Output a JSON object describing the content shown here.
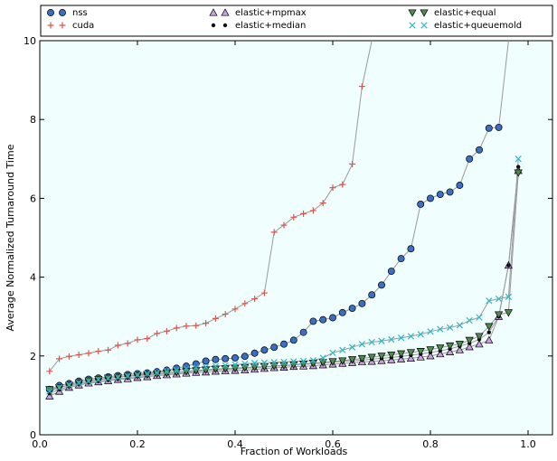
{
  "chart_data": {
    "type": "line",
    "xlabel": "Fraction of Workloads",
    "ylabel": "Average Normalized Turnaround Time",
    "xlim": [
      0.0,
      1.05
    ],
    "ylim": [
      0,
      10
    ],
    "xticks": [
      0.0,
      0.2,
      0.4,
      0.6,
      0.8,
      1.0
    ],
    "xtick_labels": [
      "0.0",
      "0.2",
      "0.4",
      "0.6",
      "0.8",
      "1.0"
    ],
    "yticks": [
      0,
      2,
      4,
      6,
      8,
      10
    ],
    "ytick_labels": [
      "0",
      "2",
      "4",
      "6",
      "8",
      "10"
    ],
    "grid": false,
    "legend_position": "top",
    "plot_background": "#f0fefe",
    "line_color": "#999999",
    "series": [
      {
        "name": "nss",
        "marker": "circle",
        "color": "#3a6fc4",
        "x": [
          0.02,
          0.04,
          0.06,
          0.08,
          0.1,
          0.12,
          0.14,
          0.16,
          0.18,
          0.2,
          0.22,
          0.24,
          0.26,
          0.28,
          0.3,
          0.32,
          0.34,
          0.36,
          0.38,
          0.4,
          0.42,
          0.44,
          0.46,
          0.48,
          0.5,
          0.52,
          0.54,
          0.56,
          0.58,
          0.6,
          0.62,
          0.64,
          0.66,
          0.68,
          0.7,
          0.72,
          0.74,
          0.76,
          0.78,
          0.8,
          0.82,
          0.84,
          0.86,
          0.88,
          0.9,
          0.92,
          0.94,
          0.96
        ],
        "y": [
          1.15,
          1.25,
          1.3,
          1.36,
          1.41,
          1.44,
          1.47,
          1.5,
          1.53,
          1.55,
          1.57,
          1.6,
          1.64,
          1.69,
          1.74,
          1.8,
          1.87,
          1.91,
          1.93,
          1.95,
          1.99,
          2.07,
          2.15,
          2.22,
          2.3,
          2.4,
          2.6,
          2.88,
          2.92,
          2.97,
          3.1,
          3.21,
          3.33,
          3.55,
          3.8,
          4.15,
          4.47,
          4.72,
          5.85,
          6.0,
          6.1,
          6.16,
          6.33,
          7.0,
          7.23,
          7.78,
          7.8,
          10.0
        ]
      },
      {
        "name": "cuda",
        "marker": "plus",
        "color": "#e0554f",
        "x": [
          0.02,
          0.04,
          0.06,
          0.08,
          0.1,
          0.12,
          0.14,
          0.16,
          0.18,
          0.2,
          0.22,
          0.24,
          0.26,
          0.28,
          0.3,
          0.32,
          0.34,
          0.36,
          0.38,
          0.4,
          0.42,
          0.44,
          0.46,
          0.48,
          0.5,
          0.52,
          0.54,
          0.56,
          0.58,
          0.6,
          0.62,
          0.64,
          0.66,
          0.68
        ],
        "y": [
          1.61,
          1.93,
          1.99,
          2.03,
          2.07,
          2.12,
          2.15,
          2.27,
          2.32,
          2.41,
          2.44,
          2.57,
          2.63,
          2.71,
          2.76,
          2.77,
          2.83,
          2.95,
          3.06,
          3.19,
          3.33,
          3.45,
          3.6,
          5.14,
          5.32,
          5.52,
          5.61,
          5.69,
          5.88,
          6.27,
          6.35,
          6.87,
          8.84,
          10.0
        ]
      },
      {
        "name": "elastic+mpmax",
        "marker": "triangle-up",
        "color": "#c9a0e0",
        "x": [
          0.02,
          0.04,
          0.06,
          0.08,
          0.1,
          0.12,
          0.14,
          0.16,
          0.18,
          0.2,
          0.22,
          0.24,
          0.26,
          0.28,
          0.3,
          0.32,
          0.34,
          0.36,
          0.38,
          0.4,
          0.42,
          0.44,
          0.46,
          0.48,
          0.5,
          0.52,
          0.54,
          0.56,
          0.58,
          0.6,
          0.62,
          0.64,
          0.66,
          0.68,
          0.7,
          0.72,
          0.74,
          0.76,
          0.78,
          0.8,
          0.82,
          0.84,
          0.86,
          0.88,
          0.9,
          0.92,
          0.94,
          0.96,
          0.98
        ],
        "y": [
          0.98,
          1.1,
          1.2,
          1.26,
          1.31,
          1.34,
          1.37,
          1.4,
          1.42,
          1.45,
          1.47,
          1.5,
          1.52,
          1.54,
          1.56,
          1.58,
          1.59,
          1.61,
          1.62,
          1.63,
          1.64,
          1.66,
          1.68,
          1.7,
          1.71,
          1.73,
          1.74,
          1.75,
          1.77,
          1.79,
          1.81,
          1.83,
          1.85,
          1.86,
          1.88,
          1.9,
          1.92,
          1.94,
          1.97,
          2.0,
          2.05,
          2.1,
          2.15,
          2.23,
          2.3,
          2.4,
          3.0,
          4.3,
          6.7
        ]
      },
      {
        "name": "elastic+median",
        "marker": "dot",
        "color": "#111111",
        "x": [
          0.02,
          0.04,
          0.06,
          0.08,
          0.1,
          0.12,
          0.14,
          0.16,
          0.18,
          0.2,
          0.22,
          0.24,
          0.26,
          0.28,
          0.3,
          0.32,
          0.34,
          0.36,
          0.38,
          0.4,
          0.42,
          0.44,
          0.46,
          0.48,
          0.5,
          0.52,
          0.54,
          0.56,
          0.58,
          0.6,
          0.62,
          0.64,
          0.66,
          0.68,
          0.7,
          0.72,
          0.74,
          0.76,
          0.78,
          0.8,
          0.82,
          0.84,
          0.86,
          0.88,
          0.9,
          0.92,
          0.94,
          0.96,
          0.98
        ],
        "y": [
          1.05,
          1.15,
          1.23,
          1.29,
          1.33,
          1.36,
          1.39,
          1.42,
          1.45,
          1.48,
          1.5,
          1.53,
          1.55,
          1.57,
          1.59,
          1.61,
          1.63,
          1.65,
          1.66,
          1.67,
          1.69,
          1.7,
          1.72,
          1.74,
          1.75,
          1.77,
          1.79,
          1.8,
          1.82,
          1.84,
          1.86,
          1.88,
          1.9,
          1.92,
          1.94,
          1.96,
          1.99,
          2.02,
          2.05,
          2.09,
          2.13,
          2.18,
          2.25,
          2.32,
          2.42,
          2.6,
          3.0,
          4.3,
          6.8
        ]
      },
      {
        "name": "elastic+equal",
        "marker": "triangle-down",
        "color": "#4f8a4f",
        "x": [
          0.02,
          0.04,
          0.06,
          0.08,
          0.1,
          0.12,
          0.14,
          0.16,
          0.18,
          0.2,
          0.22,
          0.24,
          0.26,
          0.28,
          0.3,
          0.32,
          0.34,
          0.36,
          0.38,
          0.4,
          0.42,
          0.44,
          0.46,
          0.48,
          0.5,
          0.52,
          0.54,
          0.56,
          0.58,
          0.6,
          0.62,
          0.64,
          0.66,
          0.68,
          0.7,
          0.72,
          0.74,
          0.76,
          0.78,
          0.8,
          0.82,
          0.84,
          0.86,
          0.88,
          0.9,
          0.92,
          0.94,
          0.96,
          0.98
        ],
        "y": [
          1.15,
          1.2,
          1.26,
          1.32,
          1.37,
          1.41,
          1.44,
          1.46,
          1.49,
          1.51,
          1.53,
          1.55,
          1.57,
          1.59,
          1.61,
          1.63,
          1.65,
          1.67,
          1.68,
          1.69,
          1.71,
          1.72,
          1.73,
          1.75,
          1.76,
          1.78,
          1.8,
          1.82,
          1.84,
          1.86,
          1.88,
          1.91,
          1.94,
          1.97,
          2.0,
          2.03,
          2.06,
          2.09,
          2.12,
          2.16,
          2.21,
          2.26,
          2.3,
          2.4,
          2.5,
          2.75,
          3.05,
          3.1,
          6.65
        ]
      },
      {
        "name": "elastic+queuemold",
        "marker": "x",
        "color": "#2fb7c9",
        "x": [
          0.02,
          0.04,
          0.06,
          0.08,
          0.1,
          0.12,
          0.14,
          0.16,
          0.18,
          0.2,
          0.22,
          0.24,
          0.26,
          0.28,
          0.3,
          0.32,
          0.34,
          0.36,
          0.38,
          0.4,
          0.42,
          0.44,
          0.46,
          0.48,
          0.5,
          0.52,
          0.54,
          0.56,
          0.58,
          0.6,
          0.62,
          0.64,
          0.66,
          0.68,
          0.7,
          0.72,
          0.74,
          0.76,
          0.78,
          0.8,
          0.82,
          0.84,
          0.86,
          0.88,
          0.9,
          0.92,
          0.94,
          0.96,
          0.98
        ],
        "y": [
          1.1,
          1.2,
          1.27,
          1.32,
          1.36,
          1.4,
          1.43,
          1.46,
          1.49,
          1.52,
          1.55,
          1.58,
          1.61,
          1.64,
          1.67,
          1.7,
          1.72,
          1.74,
          1.76,
          1.78,
          1.8,
          1.82,
          1.83,
          1.84,
          1.85,
          1.86,
          1.87,
          1.89,
          1.95,
          2.08,
          2.15,
          2.22,
          2.3,
          2.35,
          2.38,
          2.42,
          2.46,
          2.5,
          2.55,
          2.62,
          2.68,
          2.72,
          2.78,
          2.9,
          2.98,
          3.4,
          3.45,
          3.5,
          7.0
        ]
      }
    ]
  }
}
